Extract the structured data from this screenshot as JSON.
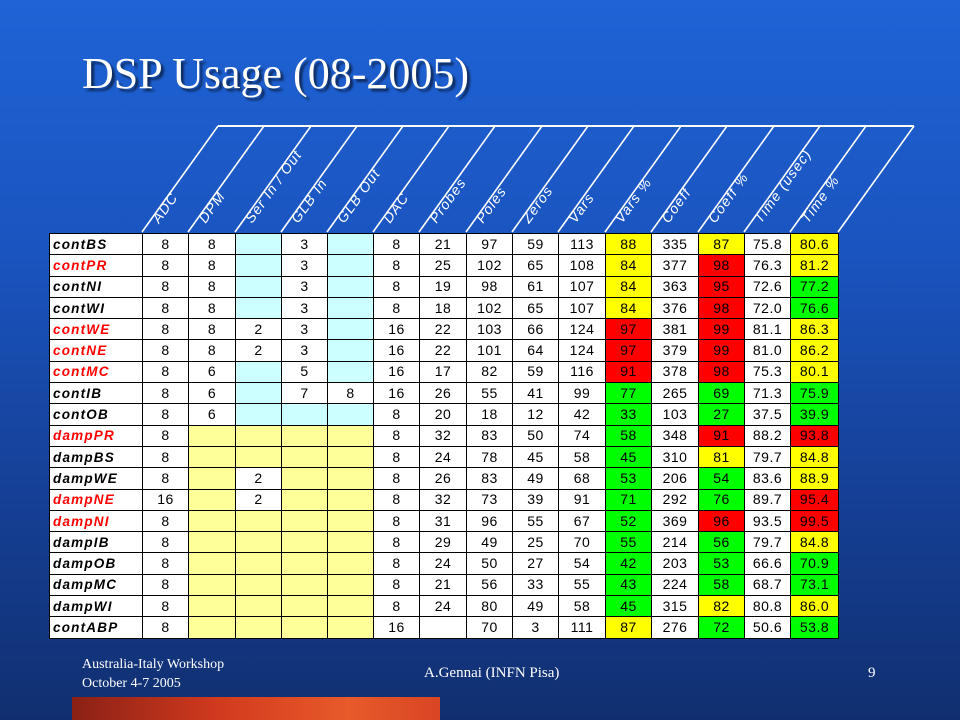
{
  "slide": {
    "title": "DSP Usage (08-2005)",
    "footer_line1": "Australia-Italy Workshop",
    "footer_line2": "October 4-7 2005",
    "author": "A.Gennai (INFN Pisa)",
    "page_number": "9"
  },
  "colors": {
    "green": "#00ff00",
    "yellow": "#ffff00",
    "red": "#ff0000",
    "lightblue": "#ccffff",
    "lightyellow": "#ffff99",
    "red_text": "#ff0000"
  },
  "headers": [
    "ADC",
    "DPM",
    "Ser In / Out",
    "GLB In",
    "GLB Out",
    "DAC",
    "Probes",
    "Poles",
    "Zeros",
    "Vars",
    "Vars %",
    "Coeff",
    "Coeff %",
    "Time (usec)",
    "Time %"
  ],
  "rows": [
    {
      "name": "contBS",
      "name_red": false,
      "cells": [
        "8",
        "8",
        "",
        "3",
        "",
        "8",
        "21",
        "97",
        "59",
        "113",
        "88",
        "335",
        "87",
        "75.8",
        "80.6"
      ],
      "fills": [
        "w",
        "w",
        "b",
        "w",
        "b",
        "w",
        "w",
        "w",
        "w",
        "w",
        "Y",
        "w",
        "Y",
        "w",
        "Y"
      ]
    },
    {
      "name": "contPR",
      "name_red": true,
      "cells": [
        "8",
        "8",
        "",
        "3",
        "",
        "8",
        "25",
        "102",
        "65",
        "108",
        "84",
        "377",
        "98",
        "76.3",
        "81.2"
      ],
      "fills": [
        "w",
        "w",
        "b",
        "w",
        "b",
        "w",
        "w",
        "w",
        "w",
        "w",
        "Y",
        "w",
        "R",
        "w",
        "Y"
      ]
    },
    {
      "name": "contNI",
      "name_red": false,
      "cells": [
        "8",
        "8",
        "",
        "3",
        "",
        "8",
        "19",
        "98",
        "61",
        "107",
        "84",
        "363",
        "95",
        "72.6",
        "77.2"
      ],
      "fills": [
        "w",
        "w",
        "b",
        "w",
        "b",
        "w",
        "w",
        "w",
        "w",
        "w",
        "Y",
        "w",
        "R",
        "w",
        "G"
      ]
    },
    {
      "name": "contWI",
      "name_red": false,
      "cells": [
        "8",
        "8",
        "",
        "3",
        "",
        "8",
        "18",
        "102",
        "65",
        "107",
        "84",
        "376",
        "98",
        "72.0",
        "76.6"
      ],
      "fills": [
        "w",
        "w",
        "b",
        "w",
        "b",
        "w",
        "w",
        "w",
        "w",
        "w",
        "Y",
        "w",
        "R",
        "w",
        "G"
      ]
    },
    {
      "name": "contWE",
      "name_red": true,
      "cells": [
        "8",
        "8",
        "2",
        "3",
        "",
        "16",
        "22",
        "103",
        "66",
        "124",
        "97",
        "381",
        "99",
        "81.1",
        "86.3"
      ],
      "fills": [
        "w",
        "w",
        "w",
        "w",
        "b",
        "w",
        "w",
        "w",
        "w",
        "w",
        "R",
        "w",
        "R",
        "w",
        "Y"
      ]
    },
    {
      "name": "contNE",
      "name_red": true,
      "cells": [
        "8",
        "8",
        "2",
        "3",
        "",
        "16",
        "22",
        "101",
        "64",
        "124",
        "97",
        "379",
        "99",
        "81.0",
        "86.2"
      ],
      "fills": [
        "w",
        "w",
        "w",
        "w",
        "b",
        "w",
        "w",
        "w",
        "w",
        "w",
        "R",
        "w",
        "R",
        "w",
        "Y"
      ]
    },
    {
      "name": "contMC",
      "name_red": true,
      "cells": [
        "8",
        "6",
        "",
        "5",
        "",
        "16",
        "17",
        "82",
        "59",
        "116",
        "91",
        "378",
        "98",
        "75.3",
        "80.1"
      ],
      "fills": [
        "w",
        "w",
        "b",
        "w",
        "b",
        "w",
        "w",
        "w",
        "w",
        "w",
        "R",
        "w",
        "R",
        "w",
        "Y"
      ]
    },
    {
      "name": "contIB",
      "name_red": false,
      "cells": [
        "8",
        "6",
        "",
        "7",
        "8",
        "16",
        "26",
        "55",
        "41",
        "99",
        "77",
        "265",
        "69",
        "71.3",
        "75.9"
      ],
      "fills": [
        "w",
        "w",
        "b",
        "w",
        "w",
        "w",
        "w",
        "w",
        "w",
        "w",
        "G",
        "w",
        "G",
        "w",
        "G"
      ]
    },
    {
      "name": "contOB",
      "name_red": false,
      "cells": [
        "8",
        "6",
        "",
        "",
        "",
        "8",
        "20",
        "18",
        "12",
        "42",
        "33",
        "103",
        "27",
        "37.5",
        "39.9"
      ],
      "fills": [
        "w",
        "w",
        "b",
        "b",
        "b",
        "w",
        "w",
        "w",
        "w",
        "w",
        "G",
        "w",
        "G",
        "w",
        "G"
      ]
    },
    {
      "name": "dampPR",
      "name_red": true,
      "cells": [
        "8",
        "",
        "",
        "",
        "",
        "8",
        "32",
        "83",
        "50",
        "74",
        "58",
        "348",
        "91",
        "88.2",
        "93.8"
      ],
      "fills": [
        "w",
        "y",
        "y",
        "y",
        "y",
        "w",
        "w",
        "w",
        "w",
        "w",
        "G",
        "w",
        "R",
        "w",
        "R"
      ]
    },
    {
      "name": "dampBS",
      "name_red": false,
      "cells": [
        "8",
        "",
        "",
        "",
        "",
        "8",
        "24",
        "78",
        "45",
        "58",
        "45",
        "310",
        "81",
        "79.7",
        "84.8"
      ],
      "fills": [
        "w",
        "y",
        "y",
        "y",
        "y",
        "w",
        "w",
        "w",
        "w",
        "w",
        "G",
        "w",
        "Y",
        "w",
        "Y"
      ]
    },
    {
      "name": "dampWE",
      "name_red": false,
      "cells": [
        "8",
        "",
        "2",
        "",
        "",
        "8",
        "26",
        "83",
        "49",
        "68",
        "53",
        "206",
        "54",
        "83.6",
        "88.9"
      ],
      "fills": [
        "w",
        "y",
        "w",
        "y",
        "y",
        "w",
        "w",
        "w",
        "w",
        "w",
        "G",
        "w",
        "G",
        "w",
        "Y"
      ]
    },
    {
      "name": "dampNE",
      "name_red": true,
      "cells": [
        "16",
        "",
        "2",
        "",
        "",
        "8",
        "32",
        "73",
        "39",
        "91",
        "71",
        "292",
        "76",
        "89.7",
        "95.4"
      ],
      "fills": [
        "w",
        "y",
        "w",
        "y",
        "y",
        "w",
        "w",
        "w",
        "w",
        "w",
        "G",
        "w",
        "G",
        "w",
        "R"
      ]
    },
    {
      "name": "dampNI",
      "name_red": true,
      "cells": [
        "8",
        "",
        "",
        "",
        "",
        "8",
        "31",
        "96",
        "55",
        "67",
        "52",
        "369",
        "96",
        "93.5",
        "99.5"
      ],
      "fills": [
        "w",
        "y",
        "y",
        "y",
        "y",
        "w",
        "w",
        "w",
        "w",
        "w",
        "G",
        "w",
        "R",
        "w",
        "R"
      ]
    },
    {
      "name": "dampIB",
      "name_red": false,
      "cells": [
        "8",
        "",
        "",
        "",
        "",
        "8",
        "29",
        "49",
        "25",
        "70",
        "55",
        "214",
        "56",
        "79.7",
        "84.8"
      ],
      "fills": [
        "w",
        "y",
        "y",
        "y",
        "y",
        "w",
        "w",
        "w",
        "w",
        "w",
        "G",
        "w",
        "G",
        "w",
        "Y"
      ]
    },
    {
      "name": "dampOB",
      "name_red": false,
      "cells": [
        "8",
        "",
        "",
        "",
        "",
        "8",
        "24",
        "50",
        "27",
        "54",
        "42",
        "203",
        "53",
        "66.6",
        "70.9"
      ],
      "fills": [
        "w",
        "y",
        "y",
        "y",
        "y",
        "w",
        "w",
        "w",
        "w",
        "w",
        "G",
        "w",
        "G",
        "w",
        "G"
      ]
    },
    {
      "name": "dampMC",
      "name_red": false,
      "cells": [
        "8",
        "",
        "",
        "",
        "",
        "8",
        "21",
        "56",
        "33",
        "55",
        "43",
        "224",
        "58",
        "68.7",
        "73.1"
      ],
      "fills": [
        "w",
        "y",
        "y",
        "y",
        "y",
        "w",
        "w",
        "w",
        "w",
        "w",
        "G",
        "w",
        "G",
        "w",
        "G"
      ]
    },
    {
      "name": "dampWI",
      "name_red": false,
      "cells": [
        "8",
        "",
        "",
        "",
        "",
        "8",
        "24",
        "80",
        "49",
        "58",
        "45",
        "315",
        "82",
        "80.8",
        "86.0"
      ],
      "fills": [
        "w",
        "y",
        "y",
        "y",
        "y",
        "w",
        "w",
        "w",
        "w",
        "w",
        "G",
        "w",
        "Y",
        "w",
        "Y"
      ]
    },
    {
      "name": "contABP",
      "name_red": false,
      "cells": [
        "8",
        "",
        "",
        "",
        "",
        "16",
        "",
        "70",
        "3",
        "111",
        "87",
        "276",
        "72",
        "50.6",
        "53.8"
      ],
      "fills": [
        "w",
        "y",
        "y",
        "y",
        "y",
        "w",
        "w",
        "w",
        "w",
        "w",
        "Y",
        "w",
        "G",
        "w",
        "G"
      ]
    }
  ]
}
